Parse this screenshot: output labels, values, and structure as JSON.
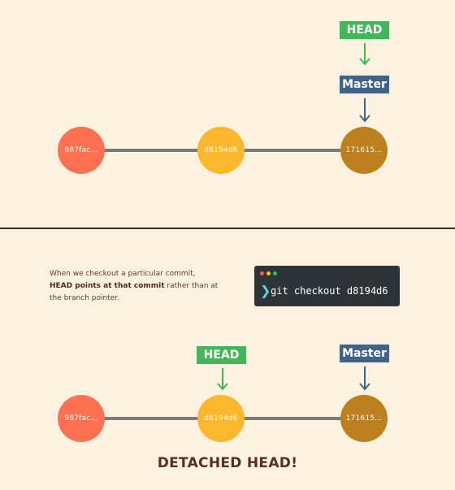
{
  "top": {
    "commits": [
      "987fac...",
      "d8194d6",
      "171615..."
    ],
    "head_label": "HEAD",
    "master_label": "Master"
  },
  "bottom": {
    "caption_pre": "When we checkout a particular commit,",
    "caption_bold": "HEAD points at that commit",
    "caption_post": " rather than at the branch pointer.",
    "terminal": {
      "prompt": "❯",
      "command": "git checkout d8194d6",
      "dots": [
        "#ff5f56",
        "#ffbd2e",
        "#27c93f"
      ]
    },
    "commits": [
      "987fac...",
      "d8194d6",
      "171615..."
    ],
    "head_label": "HEAD",
    "master_label": "Master",
    "detached_text": "DETACHED HEAD!"
  },
  "colors": {
    "background": "#fdf2e0",
    "commit_1": "#ff7150",
    "commit_2": "#fdb72d",
    "commit_3": "#bd801f",
    "head": "#43b65a",
    "master": "#3f6488",
    "line": "#7a7a7a"
  }
}
